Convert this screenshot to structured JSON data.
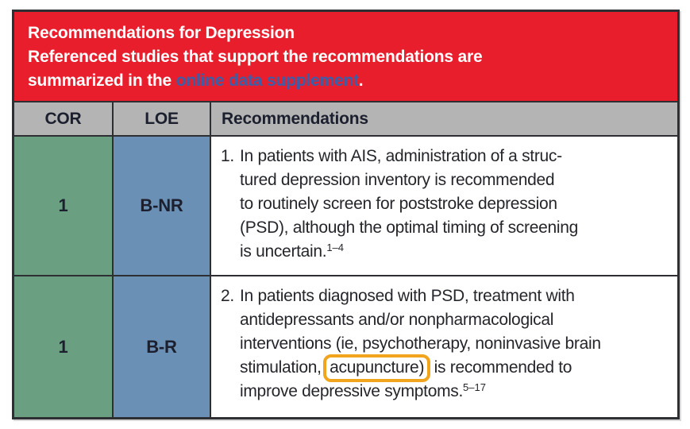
{
  "banner": {
    "line1": "Recommendations for Depression",
    "line2": "Referenced studies that support the recommendations are",
    "line3_prefix": "summarized in the ",
    "line3_link": "online data supplement",
    "line3_suffix": "."
  },
  "header": {
    "cor": "COR",
    "loe": "LOE",
    "recommendations": "Recommendations"
  },
  "rows": [
    {
      "cor": "1",
      "loe": "B-NR",
      "number": "1.",
      "lines": [
        "In patients with AIS, administration of a struc-",
        "tured depression inventory is recommended",
        "to routinely screen for poststroke depression",
        "(PSD), although the optimal timing of screening",
        "is uncertain."
      ],
      "citation": "1–4"
    },
    {
      "cor": "1",
      "loe": "B-R",
      "number": "2.",
      "lines": [
        "In patients diagnosed with PSD, treatment with",
        "antidepressants and/or nonpharmacological",
        "interventions (ie, psychotherapy, noninvasive brain"
      ],
      "highlight_line": {
        "pre": "stimulation, ",
        "highlighted": "acupuncture)",
        "post": " is recommended to"
      },
      "last_line": "improve depressive symptoms.",
      "citation": "5–17"
    }
  ],
  "colors": {
    "banner_red": "#e81e2c",
    "link_blue": "#3a5fa8",
    "header_gray": "#b4b4b4",
    "cor_green": "#6aa081",
    "loe_blue": "#6b90b5",
    "border_dark": "#2d2f33",
    "highlight_orange": "#f0a51d"
  }
}
